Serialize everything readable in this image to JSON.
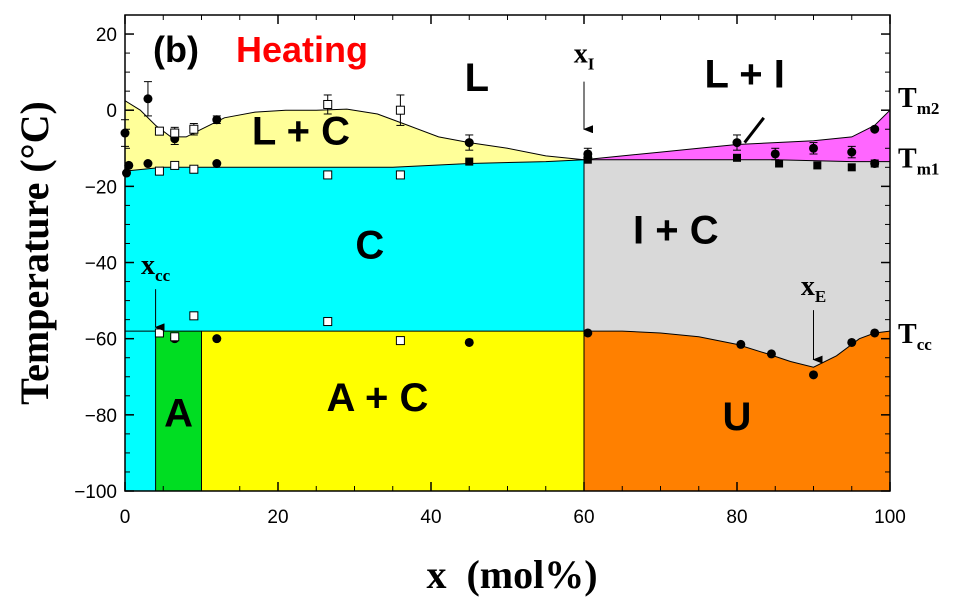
{
  "chart_data": {
    "type": "area",
    "panel_label": "(b)",
    "title": "Heating",
    "title_color": "#ff0000",
    "xlabel": "x  (mol%)",
    "ylabel": "Temperature (°C)",
    "xlim": [
      0,
      100
    ],
    "ylim": [
      -100,
      25
    ],
    "x_ticks": [
      0,
      20,
      40,
      60,
      80,
      100
    ],
    "y_ticks": [
      20,
      0,
      -20,
      -40,
      -60,
      -80,
      -100
    ],
    "x_tick_labels": [
      "0",
      "20",
      "40",
      "60",
      "80",
      "100"
    ],
    "y_tick_labels": [
      "20",
      "0",
      "−20",
      "−40",
      "−60",
      "−80",
      "−100"
    ],
    "grid": false,
    "regions": [
      {
        "key": "L",
        "label": "L",
        "color": "#ffffff",
        "label_x": 46,
        "label_y": 5
      },
      {
        "key": "LC",
        "label": "L + C",
        "color": "#ffff99",
        "label_x": 23,
        "label_y": -9
      },
      {
        "key": "LI",
        "label": "L + I",
        "color": "#ff66ff",
        "label_x": 81,
        "label_y": 6
      },
      {
        "key": "C",
        "label": "C",
        "color": "#00ffff",
        "label_x": 32,
        "label_y": -39
      },
      {
        "key": "IC",
        "label": "I + C",
        "color": "#d9d9d9",
        "label_x": 72,
        "label_y": -35
      },
      {
        "key": "A",
        "label": "A",
        "color": "#00dd22",
        "label_x": 7,
        "label_y": -83
      },
      {
        "key": "AC",
        "label": "A + C",
        "color": "#ffff00",
        "label_x": 33,
        "label_y": -79
      },
      {
        "key": "U",
        "label": "U",
        "color": "#ff8000",
        "label_x": 80,
        "label_y": -84
      }
    ],
    "boundaries": {
      "liquidus_left": [
        [
          0,
          2.5
        ],
        [
          2,
          0
        ],
        [
          4,
          -4
        ],
        [
          6,
          -7
        ],
        [
          8,
          -7
        ],
        [
          10,
          -5
        ],
        [
          13,
          -2
        ],
        [
          17,
          -0.5
        ],
        [
          21,
          0
        ],
        [
          25,
          0
        ],
        [
          29,
          0.3
        ],
        [
          33,
          -1
        ],
        [
          37,
          -4
        ],
        [
          41,
          -7
        ],
        [
          45,
          -8.5
        ],
        [
          50,
          -10
        ],
        [
          55,
          -12
        ],
        [
          60,
          -13
        ]
      ],
      "liquidus_right": [
        [
          60,
          -13
        ],
        [
          65,
          -12
        ],
        [
          70,
          -11
        ],
        [
          75,
          -10
        ],
        [
          80,
          -9
        ],
        [
          85,
          -8.5
        ],
        [
          90,
          -8
        ],
        [
          95,
          -7
        ],
        [
          98,
          -4
        ],
        [
          100,
          0
        ]
      ],
      "tm1_line": [
        [
          0,
          -16
        ],
        [
          5,
          -15
        ],
        [
          20,
          -15
        ],
        [
          35,
          -15
        ],
        [
          45,
          -14
        ],
        [
          55,
          -13.5
        ],
        [
          60,
          -13
        ],
        [
          65,
          -13
        ],
        [
          75,
          -13
        ],
        [
          85,
          -13
        ],
        [
          95,
          -13.5
        ],
        [
          100,
          -13.5
        ]
      ],
      "tcc_line": [
        [
          0,
          -58
        ],
        [
          60,
          -58
        ]
      ],
      "eutectic_curve": [
        [
          60,
          -58
        ],
        [
          65,
          -58
        ],
        [
          70,
          -58.5
        ],
        [
          75,
          -59.5
        ],
        [
          80,
          -61.5
        ],
        [
          84,
          -64
        ],
        [
          87,
          -66
        ],
        [
          90,
          -67.5
        ],
        [
          93,
          -64.5
        ],
        [
          96,
          -60
        ],
        [
          98,
          -58.5
        ],
        [
          100,
          -58
        ]
      ],
      "x_i": 60,
      "a_phase_range": [
        4,
        10
      ]
    },
    "series": [
      {
        "marker": "filled-circle",
        "points": [
          [
            0,
            -6
          ],
          [
            0.5,
            -14.5
          ],
          [
            0.2,
            -16.5
          ],
          [
            3,
            3
          ],
          [
            3,
            -14
          ],
          [
            6.5,
            -7.5
          ],
          [
            12,
            -2.5
          ],
          [
            12,
            -14
          ],
          [
            45,
            -8.5
          ],
          [
            60.5,
            -11.5
          ],
          [
            60.5,
            -12.5
          ],
          [
            80,
            -8.5
          ],
          [
            85,
            -11.5
          ],
          [
            90,
            -10
          ],
          [
            95,
            -11
          ],
          [
            98,
            -5
          ],
          [
            98,
            -14
          ],
          [
            60.5,
            -58.5
          ],
          [
            80.5,
            -61.5
          ],
          [
            84.5,
            -64
          ],
          [
            90,
            -69.5
          ],
          [
            95,
            -61
          ],
          [
            98,
            -58.5
          ],
          [
            6.5,
            -60
          ],
          [
            12,
            -60
          ],
          [
            45,
            -61
          ]
        ],
        "error_bars": [
          {
            "x": 0,
            "y": -6,
            "err": 3.5
          },
          {
            "x": 3,
            "y": 3,
            "err": 4.5
          },
          {
            "x": 6.5,
            "y": -7.5,
            "err": 1.5
          },
          {
            "x": 12,
            "y": -2.5,
            "err": 1
          },
          {
            "x": 45,
            "y": -8.5,
            "err": 2
          },
          {
            "x": 60.5,
            "y": -11.5,
            "err": 1.5
          },
          {
            "x": 80,
            "y": -8.5,
            "err": 2
          },
          {
            "x": 85,
            "y": -11.5,
            "err": 1.5
          },
          {
            "x": 90,
            "y": -10,
            "err": 1.5
          },
          {
            "x": 95,
            "y": -11,
            "err": 1.5
          }
        ]
      },
      {
        "marker": "open-square",
        "points": [
          [
            4.5,
            -5.5
          ],
          [
            4.5,
            -16
          ],
          [
            6.5,
            -6
          ],
          [
            6.5,
            -14.5
          ],
          [
            9,
            -5
          ],
          [
            9,
            -15.5
          ],
          [
            26.5,
            1.5
          ],
          [
            26.5,
            -17
          ],
          [
            36,
            0
          ],
          [
            36,
            -17
          ],
          [
            4.5,
            -58.5
          ],
          [
            6.5,
            -59.5
          ],
          [
            9,
            -54
          ],
          [
            26.5,
            -55.5
          ],
          [
            36,
            -60.5
          ]
        ],
        "error_bars": [
          {
            "x": 6.5,
            "y": -6,
            "err": 1.5
          },
          {
            "x": 9,
            "y": -5,
            "err": 1.5
          },
          {
            "x": 26.5,
            "y": 1.5,
            "err": 2.5
          },
          {
            "x": 36,
            "y": 0,
            "err": 4
          }
        ]
      },
      {
        "marker": "filled-square",
        "points": [
          [
            45,
            -13.5
          ],
          [
            60.5,
            -13
          ],
          [
            80,
            -12.5
          ],
          [
            85.5,
            -14
          ],
          [
            90.5,
            -14.5
          ],
          [
            95,
            -15
          ],
          [
            98,
            -14
          ]
        ]
      }
    ],
    "annotations": [
      {
        "key": "xI",
        "text": "x",
        "sub": "I",
        "x": 60,
        "label_y": 12.5,
        "arrow_from": 7.5,
        "arrow_to": -5
      },
      {
        "key": "xcc",
        "text": "x",
        "sub": "cc",
        "x": 4,
        "label_y": -43,
        "arrow_from": -47,
        "arrow_to": -57
      },
      {
        "key": "xE",
        "text": "x",
        "sub": "E",
        "x": 90,
        "label_y": -48.5,
        "arrow_from": -52.5,
        "arrow_to": -65.5
      }
    ],
    "line_labels": [
      {
        "key": "tm2",
        "text": "T",
        "sub": "m2",
        "y": 3
      },
      {
        "key": "tm1",
        "text": "T",
        "sub": "m1",
        "y": -13
      },
      {
        "key": "tcc",
        "text": "T",
        "sub": "cc",
        "y": -59
      }
    ]
  }
}
